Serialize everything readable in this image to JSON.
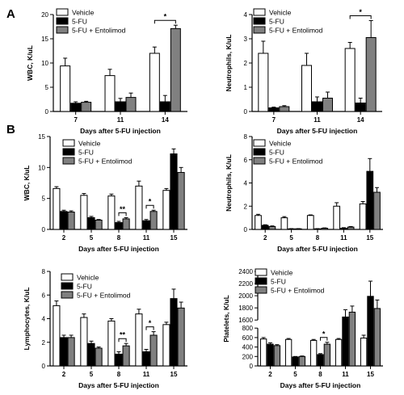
{
  "panel_letters": [
    "A",
    "B"
  ],
  "colors": {
    "vehicle": "#ffffff",
    "five_fu": "#000000",
    "entolimod": "#808080",
    "stroke": "#000000"
  },
  "chart_data": [
    {
      "id": "a-wbc",
      "type": "bar",
      "xlabel": "Days after 5-FU injection",
      "ylabel": "WBC, K/uL",
      "categories": [
        "7",
        "11",
        "14"
      ],
      "ylim": [
        0,
        20
      ],
      "yticks": [
        "0",
        "5",
        "10",
        "15",
        "20"
      ],
      "ytick_values": [
        0,
        5,
        10,
        15,
        20
      ],
      "legend": [
        "Vehicle",
        "5-FU",
        "5-FU + Entolimod"
      ],
      "legend_placement": "top-left",
      "series": [
        {
          "name": "Vehicle",
          "values": [
            9.4,
            7.4,
            12.0
          ],
          "errors": [
            1.6,
            1.3,
            1.3
          ]
        },
        {
          "name": "5-FU",
          "values": [
            1.7,
            2.0,
            2.0
          ],
          "errors": [
            0.3,
            0.7,
            1.3
          ]
        },
        {
          "name": "5-FU + Entolimod",
          "values": [
            1.9,
            2.9,
            17.1
          ],
          "errors": [
            0.2,
            0.9,
            0.7
          ]
        }
      ],
      "annotations": [
        {
          "text": "*",
          "category": 2,
          "between": [
            0,
            2
          ]
        }
      ]
    },
    {
      "id": "a-neu",
      "type": "bar",
      "xlabel": "Days after 5-FU injection",
      "ylabel": "Neutrophils, K/uL",
      "categories": [
        "7",
        "11",
        "14"
      ],
      "ylim": [
        0,
        4
      ],
      "yticks": [
        "0",
        "1",
        "2",
        "3",
        "4"
      ],
      "ytick_values": [
        0,
        1,
        2,
        3,
        4
      ],
      "legend": [
        "Vehicle",
        "5-FU",
        "5-FU + Entolimod"
      ],
      "legend_placement": "top-right",
      "series": [
        {
          "name": "Vehicle",
          "values": [
            2.4,
            1.9,
            2.6
          ],
          "errors": [
            0.5,
            0.5,
            0.25
          ]
        },
        {
          "name": "5-FU",
          "values": [
            0.15,
            0.4,
            0.35
          ],
          "errors": [
            0.03,
            0.2,
            0.2
          ]
        },
        {
          "name": "5-FU + Entolimod",
          "values": [
            0.2,
            0.55,
            3.05
          ],
          "errors": [
            0.04,
            0.25,
            0.7
          ]
        }
      ],
      "annotations": [
        {
          "text": "*",
          "category": 2,
          "between": [
            0,
            2
          ]
        }
      ]
    },
    {
      "id": "b-wbc",
      "type": "bar",
      "xlabel": "Days after 5-FU injection",
      "ylabel": "WBC, K/uL",
      "categories": [
        "2",
        "5",
        "8",
        "11",
        "15"
      ],
      "ylim": [
        0,
        15
      ],
      "yticks": [
        "0",
        "5",
        "10",
        "15"
      ],
      "ytick_values": [
        0,
        5,
        10,
        15
      ],
      "legend": [
        "Vehicle",
        "5-FU",
        "5-FU + Entolimod"
      ],
      "legend_placement": "top-right",
      "series": [
        {
          "name": "Vehicle",
          "values": [
            6.6,
            5.5,
            5.4,
            7.0,
            6.3
          ],
          "errors": [
            0.3,
            0.3,
            0.3,
            0.8,
            0.3
          ]
        },
        {
          "name": "5-FU",
          "values": [
            2.9,
            1.9,
            1.1,
            1.4,
            12.2
          ],
          "errors": [
            0.2,
            0.2,
            0.2,
            0.2,
            0.8
          ]
        },
        {
          "name": "5-FU + Entolimod",
          "values": [
            2.8,
            1.5,
            1.7,
            2.9,
            9.2
          ],
          "errors": [
            0.2,
            0.1,
            0.2,
            0.2,
            0.8
          ]
        }
      ],
      "annotations": [
        {
          "text": "**",
          "category": 2,
          "between": [
            1,
            2
          ]
        },
        {
          "text": "*",
          "category": 3,
          "between": [
            1,
            2
          ]
        }
      ]
    },
    {
      "id": "b-neu",
      "type": "bar",
      "xlabel": "Days after 5-FU injection",
      "ylabel": "Neutrophils, K/uL",
      "categories": [
        "2",
        "5",
        "8",
        "11",
        "15"
      ],
      "ylim": [
        0,
        8
      ],
      "yticks": [
        "0",
        "2",
        "4",
        "6",
        "8"
      ],
      "ytick_values": [
        0,
        2,
        4,
        6,
        8
      ],
      "legend": [
        "Vehicle",
        "5-FU",
        "5-FU + Entolimod"
      ],
      "legend_placement": "top-right",
      "series": [
        {
          "name": "Vehicle",
          "values": [
            1.2,
            1.0,
            1.2,
            2.0,
            2.2
          ],
          "errors": [
            0.1,
            0.1,
            0.05,
            0.3,
            0.2
          ]
        },
        {
          "name": "5-FU",
          "values": [
            0.35,
            0.05,
            0.05,
            0.1,
            5.0
          ],
          "errors": [
            0.05,
            0.02,
            0.02,
            0.05,
            1.1
          ]
        },
        {
          "name": "5-FU + Entolimod",
          "values": [
            0.25,
            0.05,
            0.1,
            0.2,
            3.2
          ],
          "errors": [
            0.05,
            0.02,
            0.03,
            0.05,
            0.4
          ]
        }
      ],
      "annotations": []
    },
    {
      "id": "b-lym",
      "type": "bar",
      "xlabel": "Days after 5-FU injection",
      "ylabel": "Lymphocytes, K/uL",
      "categories": [
        "2",
        "5",
        "8",
        "11",
        "15"
      ],
      "ylim": [
        0,
        8
      ],
      "yticks": [
        "0",
        "2",
        "4",
        "6",
        "8"
      ],
      "ytick_values": [
        0,
        2,
        4,
        6,
        8
      ],
      "legend": [
        "Vehicle",
        "5-FU",
        "5-FU + Entolimod"
      ],
      "legend_placement": "top-left",
      "series": [
        {
          "name": "Vehicle",
          "values": [
            5.1,
            4.1,
            3.8,
            4.4,
            3.5
          ],
          "errors": [
            0.4,
            0.3,
            0.2,
            0.4,
            0.2
          ]
        },
        {
          "name": "5-FU",
          "values": [
            2.4,
            1.9,
            1.0,
            1.2,
            5.7
          ],
          "errors": [
            0.2,
            0.2,
            0.2,
            0.2,
            0.8
          ]
        },
        {
          "name": "5-FU + Entolimod",
          "values": [
            2.4,
            1.5,
            1.7,
            2.6,
            4.9
          ],
          "errors": [
            0.2,
            0.1,
            0.2,
            0.3,
            0.5
          ]
        }
      ],
      "annotations": [
        {
          "text": "**",
          "category": 2,
          "between": [
            1,
            2
          ]
        },
        {
          "text": "*",
          "category": 3,
          "between": [
            1,
            2
          ]
        }
      ]
    },
    {
      "id": "b-plt",
      "type": "bar",
      "xlabel": "Days after 5-FU injection",
      "ylabel": "Platelets, K/uL",
      "categories": [
        "2",
        "5",
        "8",
        "11",
        "15"
      ],
      "ylim": [
        0,
        2400
      ],
      "broken_axis": {
        "lower": [
          0,
          800
        ],
        "upper": [
          1600,
          2400
        ]
      },
      "yticks": [
        "0",
        "200",
        "400",
        "600",
        "800",
        "1600",
        "1800",
        "2000",
        "2200",
        "2400"
      ],
      "ytick_values": [
        0,
        200,
        400,
        600,
        800,
        1600,
        1800,
        2000,
        2200,
        2400
      ],
      "legend": [
        "Vehicle",
        "5-FU",
        "5-FU + Entolimod"
      ],
      "legend_placement": "top-left",
      "series": [
        {
          "name": "Vehicle",
          "values": [
            570,
            560,
            540,
            560,
            590
          ],
          "errors": [
            30,
            20,
            20,
            20,
            60
          ]
        },
        {
          "name": "5-FU",
          "values": [
            460,
            190,
            240,
            1650,
            1990
          ],
          "errors": [
            30,
            10,
            20,
            120,
            250
          ]
        },
        {
          "name": "5-FU + Entolimod",
          "values": [
            430,
            200,
            460,
            1730,
            1790
          ],
          "errors": [
            20,
            10,
            40,
            100,
            140
          ]
        }
      ],
      "annotations": [
        {
          "text": "*",
          "category": 2,
          "between": [
            1,
            2
          ]
        }
      ]
    }
  ]
}
